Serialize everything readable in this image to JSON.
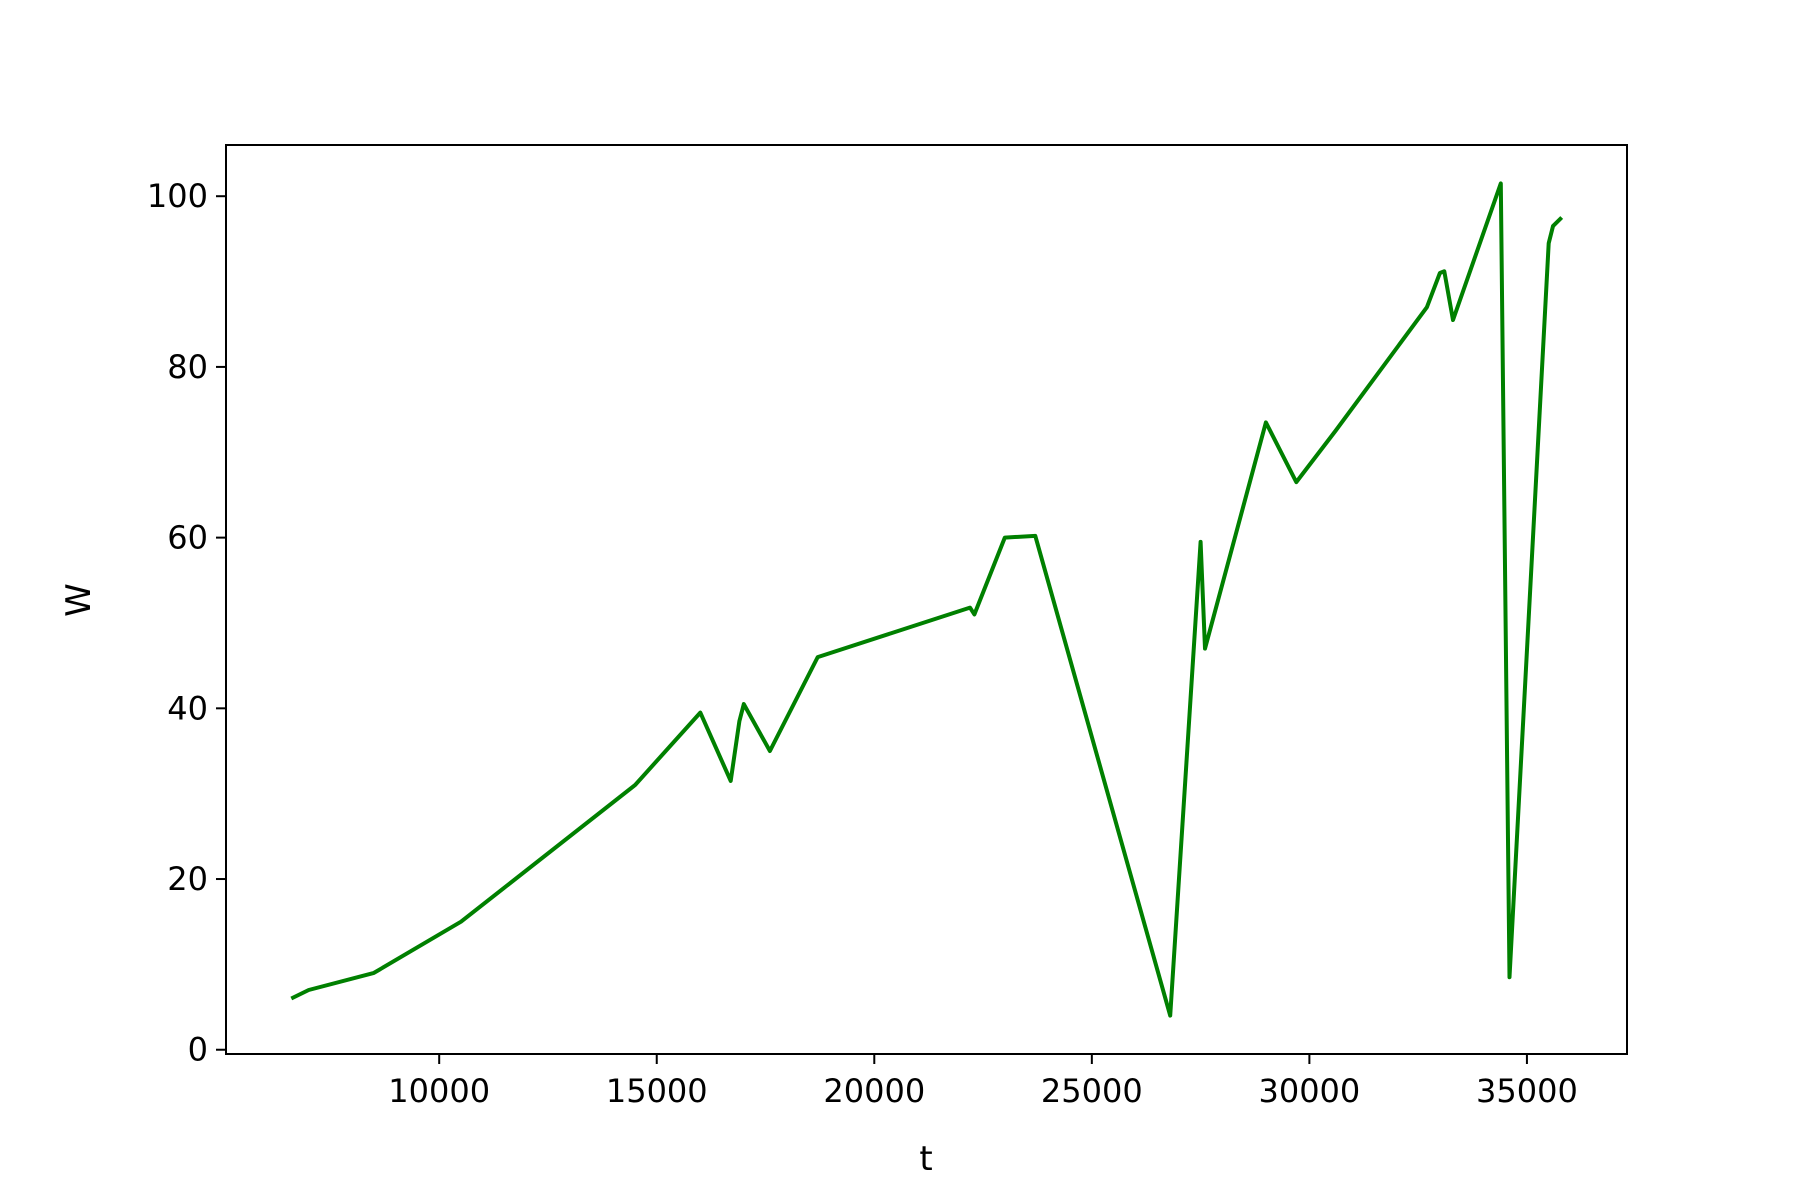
{
  "chart_data": {
    "type": "line",
    "title": "",
    "xlabel": "t",
    "ylabel": "W",
    "xlim": [
      5100,
      37300
    ],
    "ylim": [
      -0.5,
      106
    ],
    "xticks": [
      10000,
      15000,
      20000,
      25000,
      30000,
      35000
    ],
    "yticks": [
      0,
      20,
      40,
      60,
      80,
      100
    ],
    "grid": false,
    "legend": "none",
    "series": [
      {
        "color": "#008000",
        "x": [
          6600,
          7000,
          8500,
          10500,
          14500,
          16000,
          16700,
          16900,
          17000,
          17600,
          18700,
          22200,
          22300,
          23000,
          23700,
          26800,
          27500,
          27600,
          29000,
          29700,
          30600,
          32700,
          33000,
          33100,
          33300,
          34400,
          34600,
          35500,
          35600,
          35800
        ],
        "y": [
          6,
          7,
          9,
          15,
          31,
          39.5,
          31.5,
          38.5,
          40.5,
          35,
          46,
          51.8,
          51,
          60,
          60.2,
          4,
          59.5,
          47,
          73.5,
          66.5,
          72.5,
          87,
          91,
          91.2,
          85.5,
          101.5,
          8.5,
          94.5,
          96.5,
          97.5
        ]
      }
    ]
  }
}
